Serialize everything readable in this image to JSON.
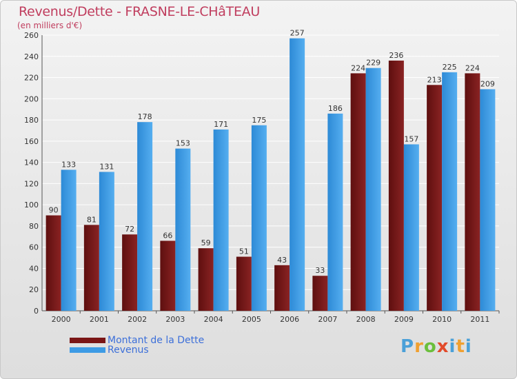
{
  "header": {
    "title": "Revenus/Dette - FRASNE-LE-CHâTEAU",
    "subtitle": "(en milliers d'€)"
  },
  "legend": {
    "items": [
      {
        "label": "Montant de la Dette",
        "color": "#7a1515"
      },
      {
        "label": "Revenus",
        "color": "#3d9be5"
      }
    ]
  },
  "logo": {
    "letters": [
      "P",
      "r",
      "o",
      "x",
      "i",
      "t",
      "i"
    ],
    "colors": [
      "#4aa0d8",
      "#f0a030",
      "#6bbf3c",
      "#e24a2a",
      "#4aa0d8",
      "#f0a030",
      "#4aa0d8"
    ]
  },
  "chart_data": {
    "type": "bar",
    "categories": [
      "2000",
      "2001",
      "2002",
      "2003",
      "2004",
      "2005",
      "2006",
      "2007",
      "2008",
      "2009",
      "2010",
      "2011"
    ],
    "series": [
      {
        "name": "Montant de la Dette",
        "color": "#7a1515",
        "values": [
          90,
          81,
          72,
          66,
          59,
          51,
          43,
          33,
          224,
          236,
          213,
          224
        ]
      },
      {
        "name": "Revenus",
        "color": "#3d9be5",
        "values": [
          133,
          131,
          178,
          153,
          171,
          175,
          257,
          186,
          229,
          157,
          225,
          209
        ]
      }
    ],
    "ylim": [
      0,
      260
    ],
    "yticks": [
      0,
      20,
      40,
      60,
      80,
      100,
      120,
      140,
      160,
      180,
      200,
      220,
      240,
      260
    ],
    "grid": true,
    "legend_position": "bottom-left"
  }
}
